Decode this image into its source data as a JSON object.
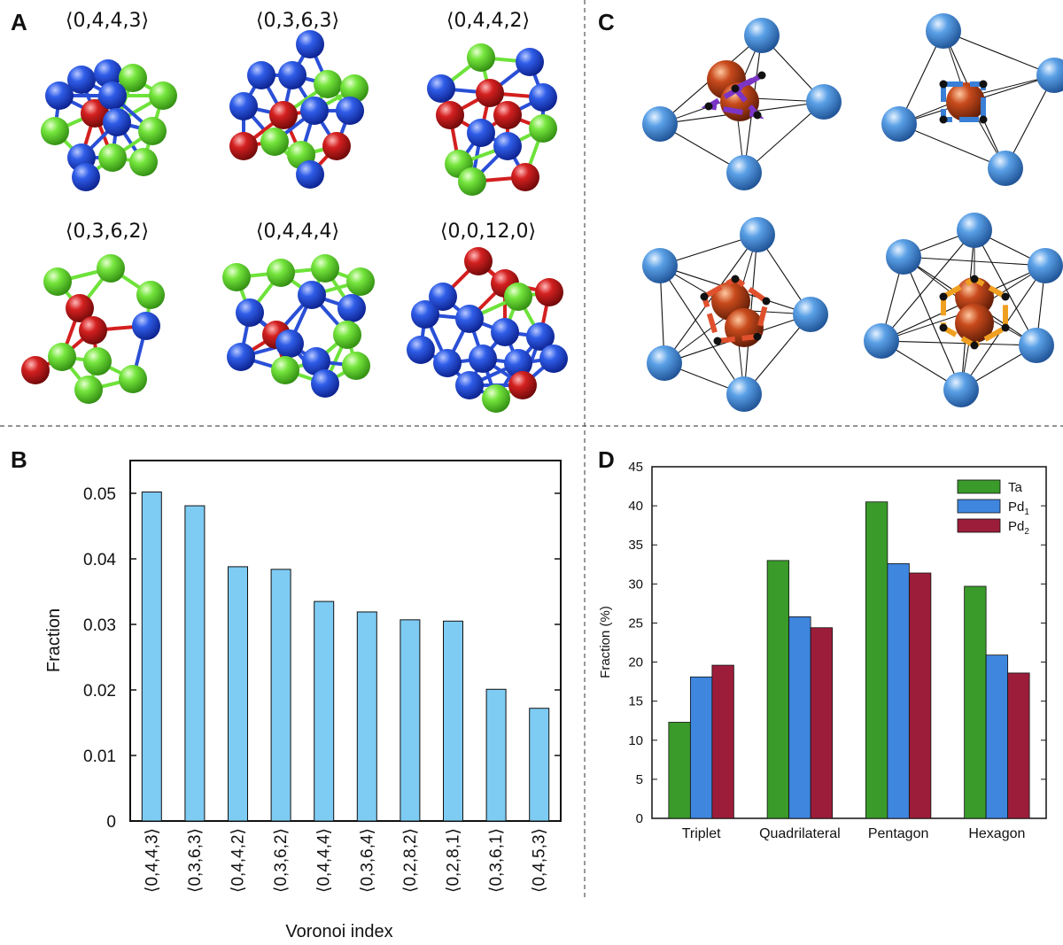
{
  "panels": {
    "a": "A",
    "b": "B",
    "c": "C",
    "d": "D"
  },
  "panel_a": {
    "labels": [
      "⟨0,4,4,3⟩",
      "⟨0,3,6,3⟩",
      "⟨0,4,4,2⟩",
      "⟨0,3,6,2⟩",
      "⟨0,4,4,4⟩",
      "⟨0,0,12,0⟩"
    ]
  },
  "colors": {
    "blue_atom": "#2a4fd6",
    "green_atom": "#6ee23a",
    "red_atom": "#d41f1f",
    "bar_b": "#7ecbf3",
    "ta": "#3a9a2a",
    "pd1": "#3e86de",
    "pd2": "#9c1d3a",
    "c_outer": "#4a8fd6",
    "c_center": "#c4461d",
    "c_purple": "#7b35c6",
    "c_blue": "#3a7fd6",
    "c_red": "#e0502d",
    "c_orange": "#f0a020"
  },
  "chart_data": [
    {
      "id": "B",
      "type": "bar",
      "categories": [
        "⟨0,4,4,3⟩",
        "⟨0,3,6,3⟩",
        "⟨0,4,4,2⟩",
        "⟨0,3,6,2⟩",
        "⟨0,4,4,4⟩",
        "⟨0,3,6,4⟩",
        "⟨0,2,8,2⟩",
        "⟨0,2,8,1⟩",
        "⟨0,3,6,1⟩",
        "⟨0,4,5,3⟩"
      ],
      "values": [
        0.0502,
        0.0481,
        0.0388,
        0.0384,
        0.0335,
        0.0319,
        0.0307,
        0.0305,
        0.0201,
        0.0172
      ],
      "xlabel": "Voronoi index",
      "ylabel": "Fraction",
      "ylim": [
        0,
        0.055
      ],
      "yticks": [
        "0",
        "0.01",
        "0.02",
        "0.03",
        "0.04",
        "0.05"
      ],
      "ytick_values": [
        0,
        0.01,
        0.02,
        0.03,
        0.04,
        0.05
      ],
      "grid": false
    },
    {
      "id": "D",
      "type": "bar",
      "categories": [
        "Triplet",
        "Quadrilateral",
        "Pentagon",
        "Hexagon"
      ],
      "series": [
        {
          "name": "Ta",
          "values": [
            12.3,
            33.0,
            40.5,
            29.7
          ]
        },
        {
          "name": "Pd1",
          "values": [
            18.1,
            25.8,
            32.6,
            20.9
          ]
        },
        {
          "name": "Pd2",
          "values": [
            19.6,
            24.4,
            31.4,
            18.6
          ]
        }
      ],
      "legend": {
        "ta_main": "Ta",
        "pd1_main": "Pd",
        "pd1_sub": "1",
        "pd2_main": "Pd",
        "pd2_sub": "2",
        "placement": "top-right"
      },
      "xlabel": "",
      "ylabel": "Fraction (%)",
      "ylim": [
        0,
        45
      ],
      "yticks": [
        "0",
        "5",
        "10",
        "15",
        "20",
        "25",
        "30",
        "35",
        "40",
        "45"
      ],
      "ytick_values": [
        0,
        5,
        10,
        15,
        20,
        25,
        30,
        35,
        40,
        45
      ],
      "grid": false
    }
  ]
}
